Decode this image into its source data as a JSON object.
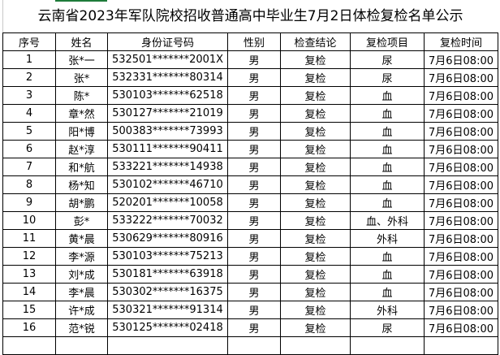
{
  "title": "云南省2023年军队院校招收普通高中毕业生7月2日体检复检名单公示",
  "headers": [
    "序号",
    "姓名",
    "身份证号码",
    "性别",
    "检查结论",
    "复检项目",
    "复检时间"
  ],
  "rows": [
    [
      "1",
      "张*一",
      "532501*******2001X",
      "男",
      "复检",
      "尿",
      "7月6日08:00"
    ],
    [
      "2",
      "张*",
      "532331*******80314",
      "男",
      "复检",
      "尿",
      "7月6日08:00"
    ],
    [
      "3",
      "陈*",
      "530103*******62518",
      "男",
      "复检",
      "血",
      "7月6日08:00"
    ],
    [
      "4",
      "章*然",
      "530127*******21019",
      "男",
      "复检",
      "血",
      "7月6日08:00"
    ],
    [
      "5",
      "阳*博",
      "500383*******73993",
      "男",
      "复检",
      "血",
      "7月6日08:00"
    ],
    [
      "6",
      "赵*淳",
      "530111*******90411",
      "男",
      "复检",
      "血",
      "7月6日08:00"
    ],
    [
      "7",
      "和*航",
      "533221*******14938",
      "男",
      "复检",
      "血",
      "7月6日08:00"
    ],
    [
      "8",
      "杨*知",
      "530102*******46710",
      "男",
      "复检",
      "血",
      "7月6日08:00"
    ],
    [
      "9",
      "胡*鹏",
      "520201*******10058",
      "男",
      "复检",
      "血",
      "7月6日08:00"
    ],
    [
      "10",
      "彭*",
      "533222*******70032",
      "男",
      "复检",
      "血、外科",
      "7月6日08:00"
    ],
    [
      "11",
      "黄*晨",
      "530629*******80916",
      "男",
      "复检",
      "外科",
      "7月6日08:00"
    ],
    [
      "12",
      "李*源",
      "530103*******75213",
      "男",
      "复检",
      "血",
      "7月6日08:00"
    ],
    [
      "13",
      "刘*成",
      "530181*******63918",
      "男",
      "复检",
      "血",
      "7月6日08:00"
    ],
    [
      "14",
      "李*晨",
      "530302*******16375",
      "男",
      "复检",
      "血",
      "7月6日08:00"
    ],
    [
      "15",
      "许*成",
      "530321*******91314",
      "男",
      "复检",
      "外科",
      "7月6日08:00"
    ],
    [
      "16",
      "范*锐",
      "530125*******02418",
      "男",
      "复检",
      "尿",
      "7月6日08:00"
    ]
  ]
}
